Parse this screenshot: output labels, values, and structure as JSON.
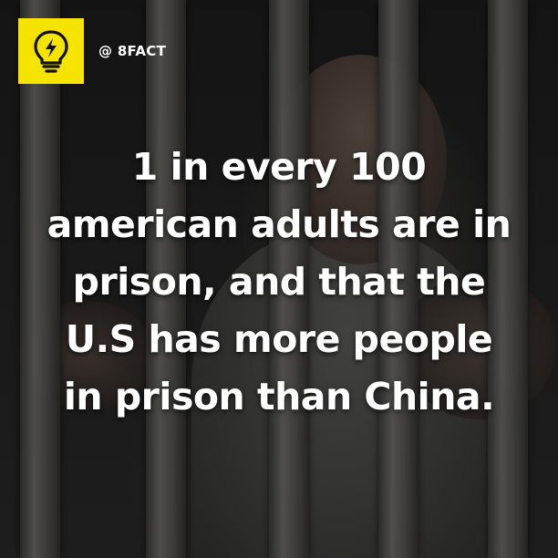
{
  "brand": {
    "handle": "@ 8FACT",
    "icon": "lightbulb-bolt-icon",
    "accent_color": "#f5e400"
  },
  "fact": {
    "lines": [
      "1 in every 100",
      "american adults are in",
      "prison, and that the",
      "U.S has more people",
      "in prison than China."
    ]
  }
}
